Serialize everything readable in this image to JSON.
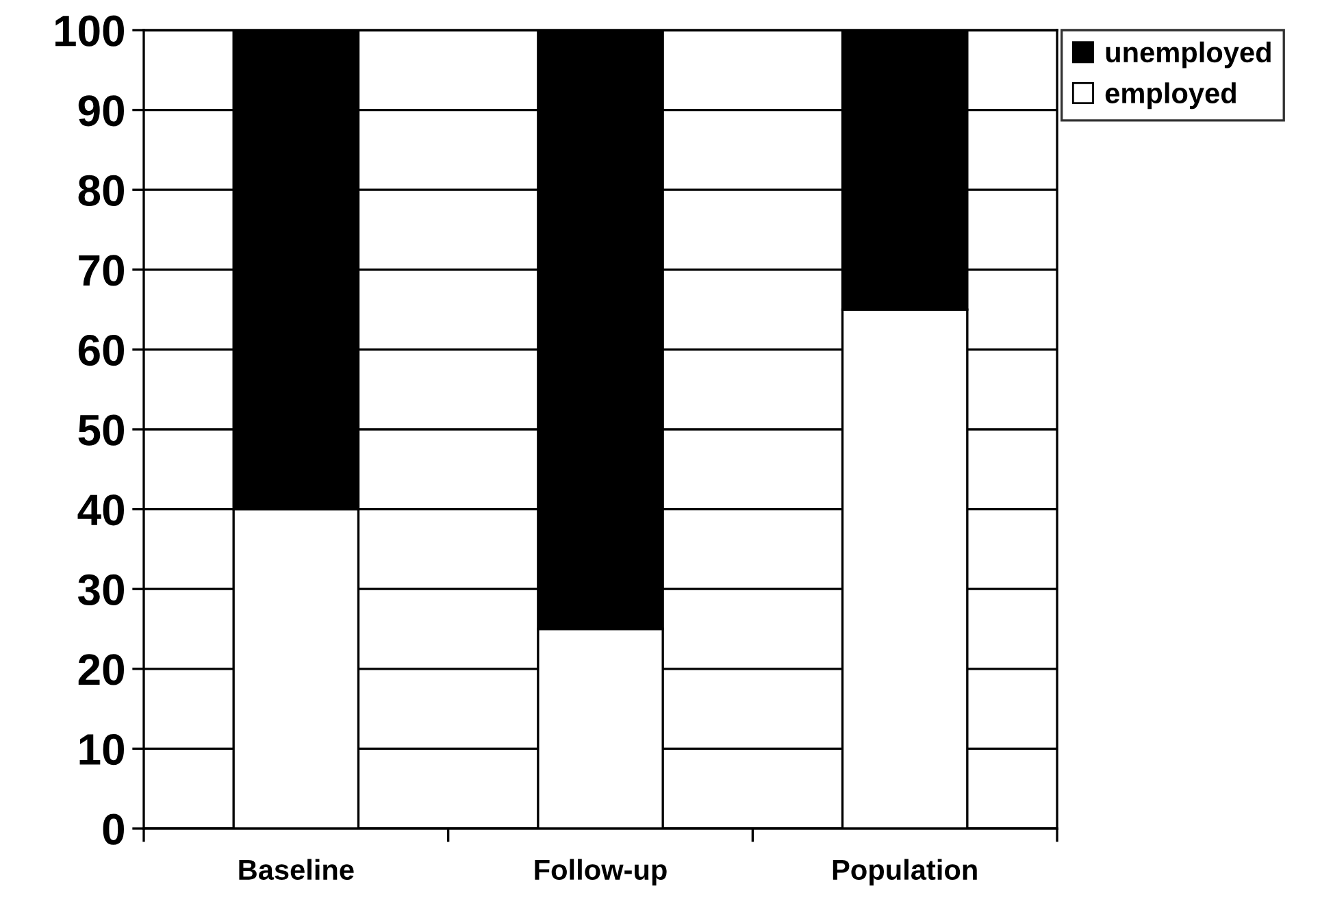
{
  "chart_data": {
    "type": "bar",
    "stacked": true,
    "categories": [
      "Baseline",
      "Follow-up",
      "Population"
    ],
    "series": [
      {
        "name": "employed",
        "color": "#ffffff",
        "values": [
          40,
          25,
          65
        ]
      },
      {
        "name": "unemployed",
        "color": "#000000",
        "values": [
          60,
          75,
          35
        ]
      }
    ],
    "ylim": [
      0,
      100
    ],
    "yticks": [
      0,
      10,
      20,
      30,
      40,
      50,
      60,
      70,
      80,
      90,
      100
    ],
    "grid": "y",
    "legend": "top right"
  }
}
